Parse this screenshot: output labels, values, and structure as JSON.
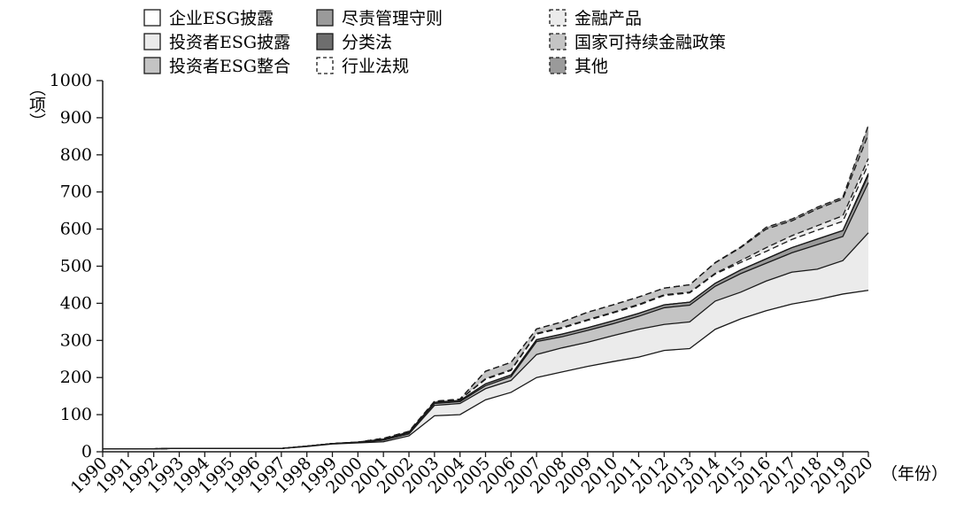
{
  "chart_data": {
    "type": "area",
    "stacked": true,
    "xlabel": "（年份）",
    "ylabel": "（项）",
    "ylim": [
      0,
      1000
    ],
    "yticks": [
      0,
      100,
      200,
      300,
      400,
      500,
      600,
      700,
      800,
      900,
      1000
    ],
    "grid": false,
    "legend_position": "top",
    "x": [
      "1990",
      "1991",
      "1992",
      "1993",
      "1994",
      "1995",
      "1996",
      "1997",
      "1998",
      "1999",
      "2000",
      "2001",
      "2002",
      "2003",
      "2004",
      "2005",
      "2006",
      "2007",
      "2008",
      "2009",
      "2010",
      "2011",
      "2012",
      "2013",
      "2014",
      "2015",
      "2016",
      "2017",
      "2018",
      "2019",
      "2020"
    ],
    "series": [
      {
        "name": "企业ESG披露",
        "fill": "#ffffff",
        "dashed": false,
        "values": [
          8,
          8,
          8,
          9,
          9,
          9,
          9,
          9,
          14,
          21,
          24,
          27,
          43,
          97,
          100,
          140,
          160,
          200,
          215,
          230,
          243,
          255,
          273,
          278,
          330,
          358,
          380,
          398,
          410,
          425,
          435
        ]
      },
      {
        "name": "投资者ESG披露",
        "fill": "#ebebeb",
        "dashed": false,
        "values": [
          0,
          0,
          0,
          0,
          0,
          0,
          0,
          0,
          1,
          1,
          1,
          4,
          5,
          28,
          30,
          30,
          32,
          62,
          65,
          65,
          70,
          75,
          70,
          72,
          76,
          72,
          80,
          86,
          82,
          90,
          155
        ]
      },
      {
        "name": "投资者ESG整合",
        "fill": "#c4c4c4",
        "dashed": false,
        "values": [
          0,
          0,
          0,
          0,
          0,
          0,
          0,
          0,
          0,
          0,
          1,
          2,
          3,
          5,
          5,
          8,
          10,
          35,
          30,
          32,
          32,
          35,
          45,
          45,
          40,
          50,
          48,
          52,
          66,
          65,
          135
        ]
      },
      {
        "name": "尽责管理守则",
        "fill": "#9a9a9a",
        "dashed": false,
        "values": [
          0,
          0,
          0,
          0,
          0,
          0,
          0,
          0,
          0,
          0,
          0,
          1,
          2,
          3,
          3,
          5,
          5,
          5,
          7,
          7,
          8,
          8,
          8,
          8,
          8,
          10,
          12,
          14,
          15,
          16,
          20
        ]
      },
      {
        "name": "分类法",
        "fill": "#6e6e6e",
        "dashed": false,
        "values": [
          0,
          0,
          0,
          0,
          0,
          0,
          0,
          0,
          0,
          0,
          0,
          0,
          0,
          0,
          0,
          0,
          0,
          0,
          0,
          0,
          0,
          0,
          0,
          0,
          0,
          0,
          0,
          0,
          0,
          0,
          5
        ]
      },
      {
        "name": "行业法规",
        "fill": "#ffffff",
        "dashed": true,
        "values": [
          0,
          0,
          0,
          0,
          0,
          0,
          0,
          0,
          0,
          0,
          0,
          2,
          2,
          2,
          3,
          12,
          12,
          15,
          16,
          20,
          21,
          22,
          25,
          25,
          25,
          20,
          20,
          22,
          24,
          25,
          25
        ]
      },
      {
        "name": "金融产品",
        "fill": "#ebebeb",
        "dashed": true,
        "values": [
          0,
          0,
          0,
          0,
          0,
          0,
          0,
          0,
          0,
          0,
          0,
          0,
          0,
          0,
          0,
          2,
          2,
          2,
          2,
          2,
          2,
          2,
          2,
          2,
          2,
          5,
          10,
          10,
          12,
          15,
          15
        ]
      },
      {
        "name": "国家可持续金融政策",
        "fill": "#c4c4c4",
        "dashed": true,
        "values": [
          0,
          0,
          0,
          0,
          0,
          0,
          0,
          0,
          0,
          0,
          0,
          0,
          0,
          1,
          1,
          20,
          20,
          12,
          15,
          20,
          20,
          20,
          18,
          20,
          28,
          35,
          50,
          40,
          45,
          45,
          65
        ]
      },
      {
        "name": "其他",
        "fill": "#9a9a9a",
        "dashed": true,
        "values": [
          0,
          0,
          0,
          0,
          0,
          0,
          0,
          0,
          0,
          0,
          0,
          0,
          0,
          0,
          0,
          0,
          0,
          0,
          0,
          0,
          0,
          0,
          0,
          0,
          1,
          2,
          5,
          5,
          5,
          5,
          25
        ]
      }
    ]
  }
}
